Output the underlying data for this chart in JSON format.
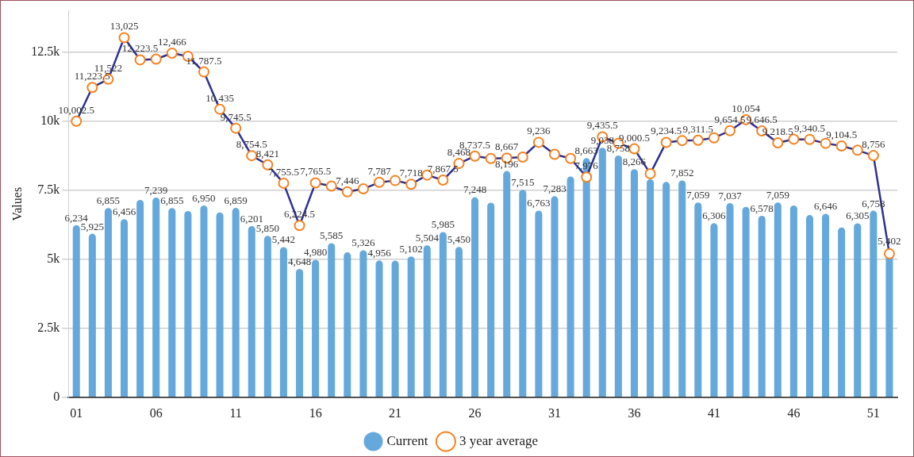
{
  "chart_data": {
    "type": "bar",
    "ylabel": "Values",
    "categories": [
      "01",
      null,
      null,
      null,
      null,
      "06",
      null,
      null,
      null,
      null,
      "11",
      null,
      null,
      null,
      null,
      "16",
      null,
      null,
      null,
      null,
      "21",
      null,
      null,
      null,
      null,
      "26",
      null,
      null,
      null,
      null,
      "31",
      null,
      null,
      null,
      null,
      "36",
      null,
      null,
      null,
      null,
      "41",
      null,
      null,
      null,
      null,
      "46",
      null,
      null,
      null,
      null,
      "51",
      null
    ],
    "series": [
      {
        "name": "Current",
        "color": "#65a9dc",
        "values": [
          6234,
          5925,
          6855,
          6456,
          7150,
          7239,
          6855,
          6750,
          6950,
          6700,
          6859,
          6201,
          5850,
          5442,
          4648,
          4980,
          5585,
          5250,
          5326,
          4956,
          4950,
          5102,
          5504,
          5985,
          5450,
          7248,
          7050,
          8196,
          7515,
          6763,
          7283,
          8000,
          8663,
          9038,
          8758,
          8266,
          7900,
          7800,
          7852,
          7059,
          6306,
          7037,
          6900,
          6578,
          7059,
          6950,
          6600,
          6646,
          6150,
          6305,
          6758,
          5402
        ],
        "value_labels": [
          "6,234",
          "5,925",
          "6,855",
          "6,456",
          null,
          "7,239",
          "6,855",
          null,
          "6,950",
          null,
          "6,859",
          "6,201",
          "5,850",
          "5,442",
          "4,648",
          "4,980",
          "5,585",
          null,
          "5,326",
          "4,956",
          null,
          "5,102",
          "5,504",
          "5,985",
          "5,450",
          "7,248",
          null,
          "8,196",
          "7,515",
          "6,763",
          "7,283",
          null,
          "8,663",
          "9,038",
          "8,758",
          "8,266",
          null,
          null,
          "7,852",
          "7,059",
          "6,306",
          "7,037",
          null,
          "6,578",
          "7,059",
          null,
          null,
          "6,646",
          null,
          "6,305",
          "6,758",
          "5,402"
        ]
      },
      {
        "name": "3 year average",
        "type": "line",
        "color": "#2e3192",
        "values": [
          10002.5,
          11223.5,
          11522,
          13025,
          12223.5,
          12250,
          12466,
          12350,
          11787.5,
          10435,
          9745.5,
          8754.5,
          8421,
          7755.5,
          6224.5,
          7765.5,
          7650,
          7446,
          7550,
          7787,
          7850,
          7718,
          8050,
          7867.5,
          8468,
          8737.5,
          8650,
          8667,
          8700,
          9236,
          8800,
          8650,
          7976,
          9435.5,
          9200,
          9000.5,
          8100,
          9234.5,
          9300,
          9311.5,
          9400,
          9654.5,
          10054,
          9646.5,
          9218.5,
          9350,
          9340.5,
          9200,
          9104.5,
          8950,
          8756,
          5200
        ],
        "value_labels": [
          "10,002.5",
          "11,223.5",
          "11,522",
          "13,025",
          "12,223.5",
          null,
          "12,466",
          null,
          "11,787.5",
          "10,435",
          "9,745.5",
          "8,754.5",
          "8,421",
          "7,755.5",
          "6,224.5",
          "7,765.5",
          null,
          "7,446",
          null,
          "7,787",
          null,
          "7,718",
          null,
          "7,867.5",
          "8,468",
          "8,737.5",
          null,
          "8,667",
          null,
          "9,236",
          null,
          null,
          "7,976",
          "9,435.5",
          null,
          "9,000.5",
          null,
          "9,234.5",
          null,
          "9,311.5",
          null,
          "9,654.5",
          "10,054",
          "9,646.5",
          "9,218.5",
          null,
          "9,340.5",
          null,
          "9,104.5",
          null,
          "8,756",
          null
        ]
      }
    ],
    "ylim": [
      0,
      14000
    ],
    "yticks": [
      0,
      {
        "value": 2500,
        "label": "2.5k"
      },
      {
        "value": 5000,
        "label": "5k"
      },
      {
        "value": 7500,
        "label": "7.5k"
      },
      {
        "value": 10000,
        "label": "10k"
      },
      {
        "value": 12500,
        "label": "12.5k"
      }
    ],
    "grid": "y",
    "legend": "bottom",
    "marker": "circle",
    "line_style": "solid"
  }
}
